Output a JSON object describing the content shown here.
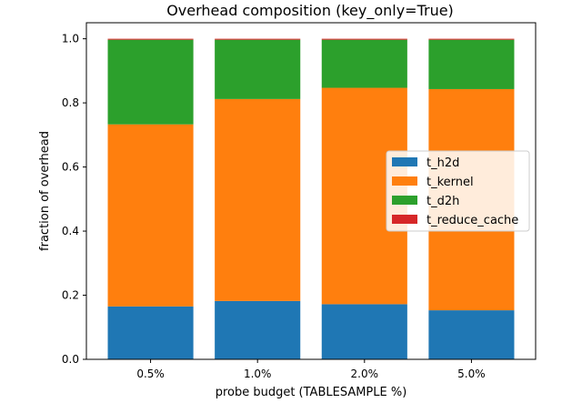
{
  "chart_data": {
    "type": "bar",
    "stacked": true,
    "title": "Overhead composition (key_only=True)",
    "xlabel": "probe budget (TABLESAMPLE %)",
    "ylabel": "fraction of overhead",
    "ylim": [
      0,
      1.05
    ],
    "yticks": [
      0.0,
      0.2,
      0.4,
      0.6,
      0.8,
      1.0
    ],
    "ytick_labels": [
      "0.0",
      "0.2",
      "0.4",
      "0.6",
      "0.8",
      "1.0"
    ],
    "categories": [
      "0.5%",
      "1.0%",
      "2.0%",
      "5.0%"
    ],
    "legend_position": "center-right",
    "series": [
      {
        "name": "t_h2d",
        "color": "#1f77b4",
        "values": [
          0.165,
          0.182,
          0.172,
          0.153
        ]
      },
      {
        "name": "t_kernel",
        "color": "#ff7f0e",
        "values": [
          0.568,
          0.63,
          0.675,
          0.69
        ]
      },
      {
        "name": "t_d2h",
        "color": "#2ca02c",
        "values": [
          0.264,
          0.185,
          0.15,
          0.154
        ]
      },
      {
        "name": "t_reduce_cache",
        "color": "#d62728",
        "values": [
          0.003,
          0.003,
          0.003,
          0.003
        ]
      }
    ]
  }
}
